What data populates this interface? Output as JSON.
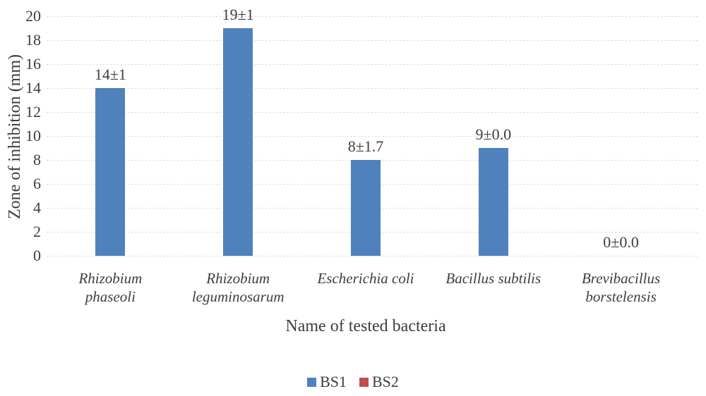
{
  "chart_data": {
    "type": "bar",
    "title": "",
    "xlabel": "Name of tested bacteria",
    "ylabel": "Zone of inhibition (mm)",
    "categories": [
      "Rhizobium phaseoli",
      "Rhizobium leguminosarum",
      "Escherichia coli",
      "Bacillus subtilis",
      "Brevibacillus borstelensis"
    ],
    "category_label_lines": [
      [
        "Rhizobium",
        "phaseoli"
      ],
      [
        "Rhizobium",
        "leguminosarum"
      ],
      [
        "Escherichia coli"
      ],
      [
        "Bacillus subtilis"
      ],
      [
        "Brevibacillus",
        "borstelensis"
      ]
    ],
    "series": [
      {
        "name": "BS1",
        "color": "#4F81BD",
        "values": [
          14,
          19,
          8,
          9,
          0
        ],
        "data_labels": [
          "14±1",
          "19±1",
          "8±1.7",
          "9±0.0",
          "0±0.0"
        ]
      },
      {
        "name": "BS2",
        "color": "#C0504D",
        "values": [],
        "data_labels": []
      }
    ],
    "ylim": [
      0,
      20
    ],
    "yticks": [
      0,
      2,
      4,
      6,
      8,
      10,
      12,
      14,
      16,
      18,
      20
    ],
    "grid": true,
    "legend_position": "bottom",
    "axis_text_color": "#3d3d3d",
    "gridline_color": "#d9d9d9",
    "background_color": "#ffffff"
  }
}
